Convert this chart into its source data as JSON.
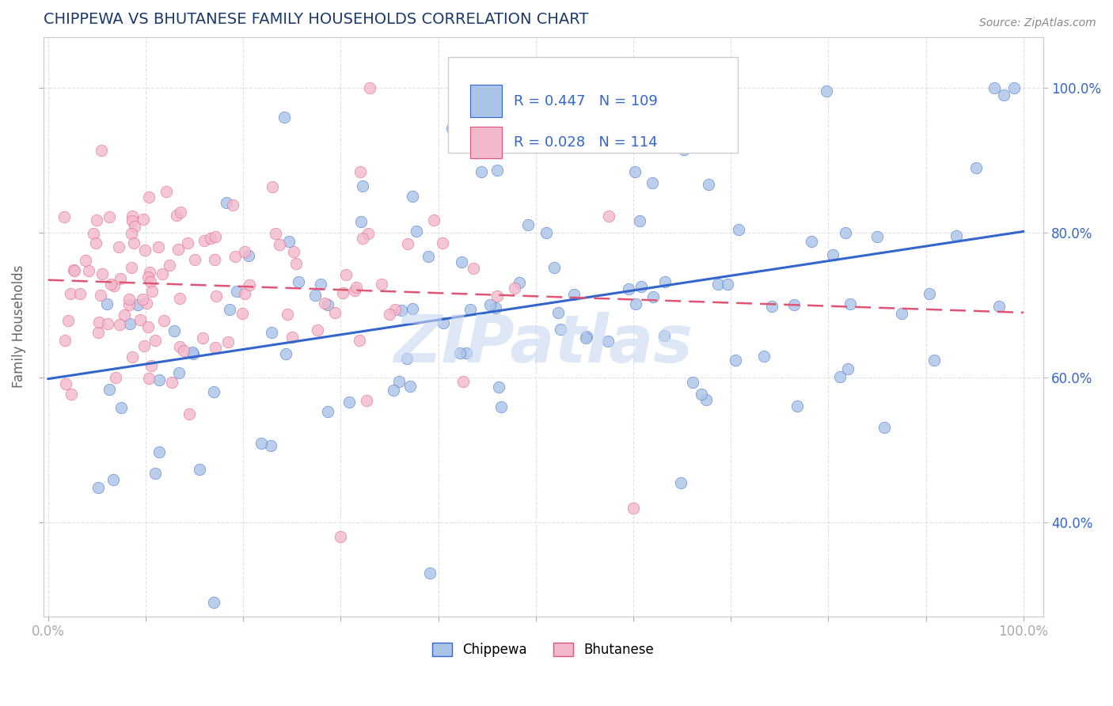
{
  "title": "CHIPPEWA VS BHUTANESE FAMILY HOUSEHOLDS CORRELATION CHART",
  "source_text": "Source: ZipAtlas.com",
  "ylabel": "Family Households",
  "chippewa_R": 0.447,
  "chippewa_N": 109,
  "bhutanese_R": 0.028,
  "bhutanese_N": 114,
  "chippewa_color": "#aac4e8",
  "bhutanese_color": "#f2b8cc",
  "chippewa_line_color": "#3366cc",
  "bhutanese_line_color": "#e05575",
  "title_color": "#1a3a6b",
  "axis_label_color": "#3366cc",
  "watermark_color": "#c8d8f0",
  "grid_color": "#e0e0e8",
  "grid_style": "--"
}
